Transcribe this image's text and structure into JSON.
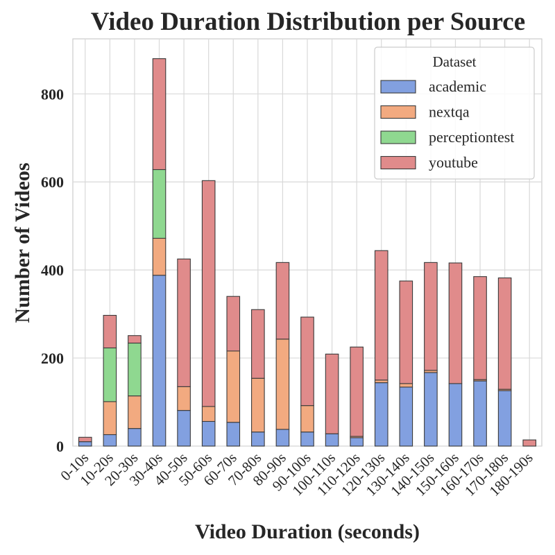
{
  "chart_data": {
    "type": "bar",
    "stacked": true,
    "title": "Video Duration Distribution per Source",
    "xlabel": "Video Duration (seconds)",
    "ylabel": "Number of Videos",
    "categories": [
      "0-10s",
      "10-20s",
      "20-30s",
      "30-40s",
      "40-50s",
      "50-60s",
      "60-70s",
      "70-80s",
      "80-90s",
      "90-100s",
      "100-110s",
      "110-120s",
      "120-130s",
      "130-140s",
      "140-150s",
      "150-160s",
      "160-170s",
      "170-180s",
      "180-190s"
    ],
    "ylim": [
      0,
      925
    ],
    "yticks": [
      0,
      200,
      400,
      600,
      800
    ],
    "grid": true,
    "legend": {
      "title": "Dataset",
      "position": "top-right"
    },
    "series": [
      {
        "name": "academic",
        "color": "#82a0e0",
        "values": [
          10,
          26,
          40,
          388,
          81,
          56,
          54,
          32,
          38,
          32,
          28,
          19,
          144,
          134,
          167,
          142,
          148,
          126,
          0
        ]
      },
      {
        "name": "nextqa",
        "color": "#f2aa80",
        "values": [
          0,
          75,
          74,
          84,
          54,
          34,
          162,
          122,
          205,
          60,
          0,
          3,
          6,
          8,
          5,
          0,
          3,
          3,
          0
        ]
      },
      {
        "name": "perceptiontest",
        "color": "#8fd890",
        "values": [
          0,
          122,
          120,
          156,
          0,
          0,
          0,
          0,
          0,
          0,
          0,
          0,
          0,
          0,
          0,
          0,
          0,
          0,
          0
        ]
      },
      {
        "name": "youtube",
        "color": "#e08b8b",
        "values": [
          10,
          74,
          17,
          252,
          290,
          513,
          124,
          156,
          174,
          201,
          181,
          203,
          294,
          233,
          245,
          274,
          234,
          253,
          14
        ]
      }
    ]
  }
}
